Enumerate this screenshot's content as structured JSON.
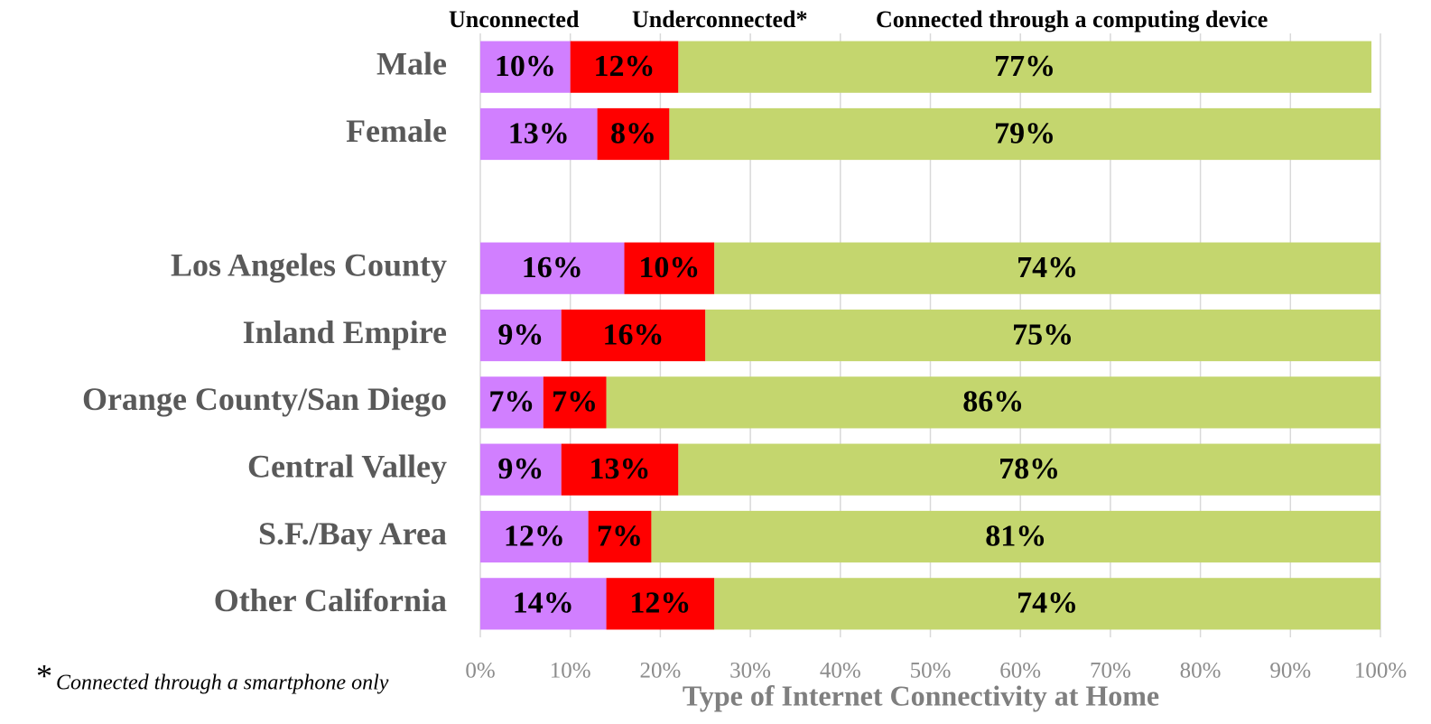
{
  "chart_data": {
    "type": "stacked-barh",
    "categories": [
      "Male",
      "Female",
      null,
      "Los Angeles County",
      "Inland Empire",
      "Orange County/San Diego",
      "Central Valley",
      "S.F./Bay Area",
      "Other California"
    ],
    "series": [
      {
        "name": "Unconnected",
        "color": "#d17fff",
        "values": [
          10,
          13,
          null,
          16,
          9,
          7,
          9,
          12,
          14
        ],
        "value_labels": [
          "10%",
          "13%",
          null,
          "16%",
          "9%",
          "7%",
          "9%",
          "12%",
          "14%"
        ]
      },
      {
        "name": "Underconnected*",
        "color": "#ff0000",
        "values": [
          12,
          8,
          null,
          10,
          16,
          7,
          13,
          7,
          12
        ],
        "value_labels": [
          "12%",
          "8%",
          null,
          "10%",
          "16%",
          "7%",
          "13%",
          "7%",
          "12%"
        ]
      },
      {
        "name": "Connected through a computing device",
        "color": "#c4d66e",
        "values": [
          77,
          79,
          null,
          74,
          75,
          86,
          78,
          81,
          74
        ],
        "value_labels": [
          "77%",
          "79%",
          null,
          "74%",
          "75%",
          "86%",
          "78%",
          "81%",
          "74%"
        ]
      }
    ],
    "xlabel": "Type of Internet Connectivity at Home",
    "xlim": [
      0,
      100
    ],
    "xticks": [
      {
        "value": 0,
        "label": "0%"
      },
      {
        "value": 10,
        "label": "10%"
      },
      {
        "value": 20,
        "label": "20%"
      },
      {
        "value": 30,
        "label": "30%"
      },
      {
        "value": 40,
        "label": "40%"
      },
      {
        "value": 50,
        "label": "50%"
      },
      {
        "value": 60,
        "label": "60%"
      },
      {
        "value": 70,
        "label": "70%"
      },
      {
        "value": 80,
        "label": "80%"
      },
      {
        "value": 90,
        "label": "90%"
      },
      {
        "value": 100,
        "label": "100%"
      }
    ],
    "grid": true,
    "legend": "top",
    "footnote_marker": "*",
    "footnote": "Connected through a smartphone only"
  }
}
